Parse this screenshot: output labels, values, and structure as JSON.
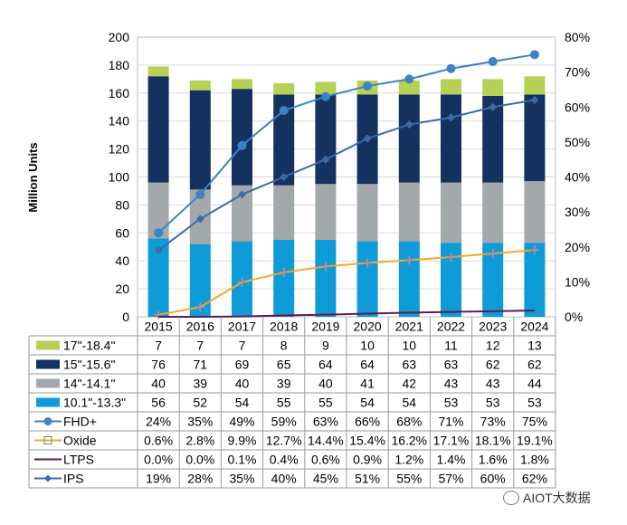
{
  "chart_data": {
    "type": "bar",
    "stacked": true,
    "y_axis_label": "Million Units",
    "ylim": [
      0,
      200
    ],
    "y_ticks": [
      "0",
      "20",
      "40",
      "60",
      "80",
      "100",
      "120",
      "140",
      "160",
      "180",
      "200"
    ],
    "y2lim": [
      0,
      80
    ],
    "y2_ticks": [
      "0%",
      "10%",
      "20%",
      "30%",
      "40%",
      "50%",
      "60%",
      "70%",
      "80%"
    ],
    "categories": [
      "2015",
      "2016",
      "2017",
      "2018",
      "2019",
      "2020",
      "2021",
      "2022",
      "2023",
      "2024"
    ],
    "bar_series": [
      {
        "name": "10.1\"-13.3\"",
        "color": "#0e9bd8",
        "values": [
          56,
          52,
          54,
          55,
          55,
          54,
          54,
          53,
          53,
          53
        ],
        "labels": [
          "56",
          "52",
          "54",
          "55",
          "55",
          "54",
          "54",
          "53",
          "53",
          "53"
        ]
      },
      {
        "name": "14\"-14.1\"",
        "color": "#a3a8ab",
        "values": [
          40,
          39,
          40,
          39,
          40,
          41,
          42,
          43,
          43,
          44
        ],
        "labels": [
          "40",
          "39",
          "40",
          "39",
          "40",
          "41",
          "42",
          "43",
          "43",
          "44"
        ]
      },
      {
        "name": "15\"-15.6\"",
        "color": "#13325f",
        "values": [
          76,
          71,
          69,
          65,
          64,
          64,
          63,
          63,
          62,
          62
        ],
        "labels": [
          "76",
          "71",
          "69",
          "65",
          "64",
          "64",
          "63",
          "63",
          "62",
          "62"
        ]
      },
      {
        "name": "17\"-18.4\"",
        "color": "#b6d156",
        "values": [
          7,
          7,
          7,
          8,
          9,
          10,
          10,
          11,
          12,
          13
        ],
        "labels": [
          "7",
          "7",
          "7",
          "8",
          "9",
          "10",
          "10",
          "11",
          "12",
          "13"
        ]
      }
    ],
    "line_series": [
      {
        "name": "FHD+",
        "color": "#3b83c3",
        "marker": "circle",
        "values": [
          24,
          35,
          49,
          59,
          63,
          66,
          68,
          71,
          73,
          75
        ],
        "labels": [
          "24%",
          "35%",
          "49%",
          "59%",
          "63%",
          "66%",
          "68%",
          "71%",
          "73%",
          "75%"
        ]
      },
      {
        "name": "Oxide",
        "color": "#f9a62b",
        "marker": "plus",
        "values": [
          0.6,
          2.8,
          9.9,
          12.7,
          14.4,
          15.4,
          16.2,
          17.1,
          18.1,
          19.1
        ],
        "labels": [
          "0.6%",
          "2.8%",
          "9.9%",
          "12.7%",
          "14.4%",
          "15.4%",
          "16.2%",
          "17.1%",
          "18.1%",
          "19.1%"
        ]
      },
      {
        "name": "LTPS",
        "color": "#5c1d4f",
        "marker": "none",
        "values": [
          0.0,
          0.0,
          0.1,
          0.4,
          0.6,
          0.9,
          1.2,
          1.4,
          1.6,
          1.8
        ],
        "labels": [
          "0.0%",
          "0.0%",
          "0.1%",
          "0.4%",
          "0.6%",
          "0.9%",
          "1.2%",
          "1.4%",
          "1.6%",
          "1.8%"
        ]
      },
      {
        "name": "IPS",
        "color": "#3d6aa9",
        "marker": "diamond",
        "values": [
          19,
          28,
          35,
          40,
          45,
          51,
          55,
          57,
          60,
          62
        ],
        "labels": [
          "19%",
          "28%",
          "35%",
          "40%",
          "45%",
          "51%",
          "55%",
          "57%",
          "60%",
          "62%"
        ]
      }
    ],
    "table_row_order": [
      "17\"-18.4\"",
      "15\"-15.6\"",
      "14\"-14.1\"",
      "10.1\"-13.3\"",
      "FHD+",
      "Oxide",
      "LTPS",
      "IPS"
    ]
  },
  "watermark": {
    "text": "AIOT大数据"
  }
}
